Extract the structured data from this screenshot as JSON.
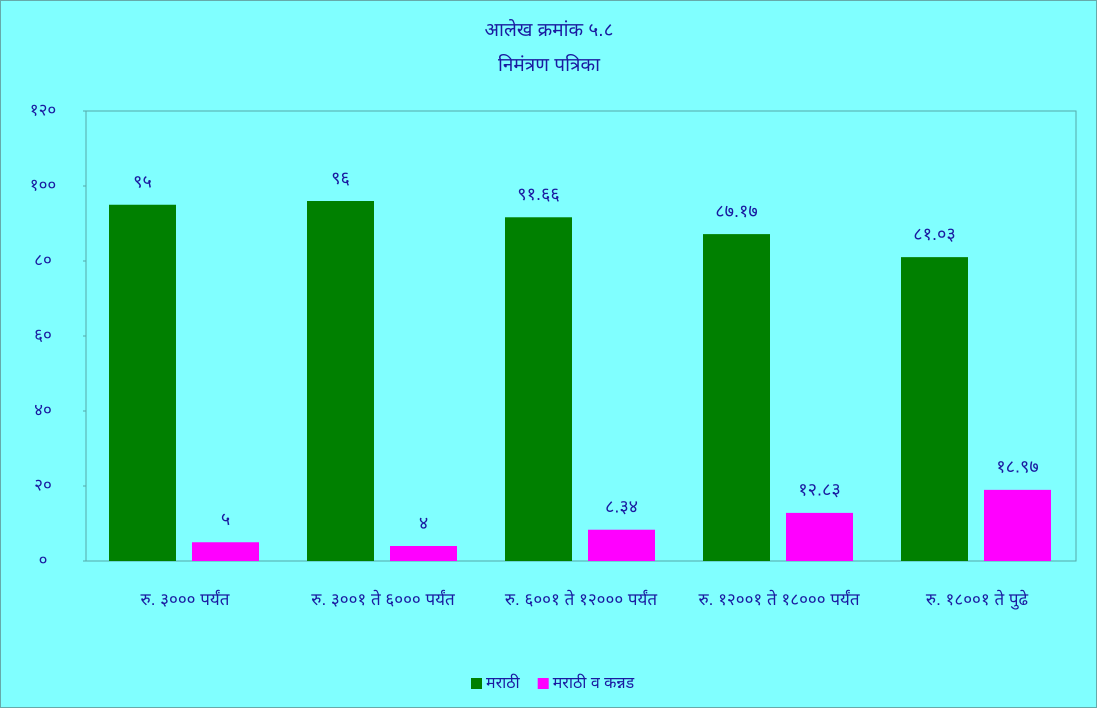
{
  "chart_data": {
    "type": "bar",
    "title": "आलेख क्रमांक ५.८",
    "subtitle": "निमंत्रण पत्रिका",
    "categories": [
      "रु. ३००० पर्यंत",
      "रु. ३००१ ते ६००० पर्यंत",
      "रु. ६००१ ते  १२००० पर्यंत",
      "रु. १२००१ ते १८००० पर्यंत",
      "रु. १८००१ ते पुढे"
    ],
    "series": [
      {
        "name": "मराठी",
        "color": "#008000",
        "values": [
          95,
          96,
          91.66,
          87.17,
          81.03
        ],
        "value_labels": [
          "९५",
          "९६",
          "९१.६६",
          "८७.१७",
          "८१.०३"
        ]
      },
      {
        "name": "मराठी व कन्नड",
        "color": "#ff00ff",
        "values": [
          5,
          4,
          8.34,
          12.83,
          18.97
        ],
        "value_labels": [
          "५",
          "४",
          "८.३४",
          "१२.८३",
          "१८.९७"
        ]
      }
    ],
    "ylim": [
      0,
      120
    ],
    "yticks": [
      {
        "value": 0,
        "label": "०"
      },
      {
        "value": 20,
        "label": "२०"
      },
      {
        "value": 40,
        "label": "४०"
      },
      {
        "value": 60,
        "label": "६०"
      },
      {
        "value": 80,
        "label": "८०"
      },
      {
        "value": 100,
        "label": "१००"
      },
      {
        "value": 120,
        "label": "१२०"
      }
    ],
    "grid": false,
    "legend": "bottom"
  }
}
